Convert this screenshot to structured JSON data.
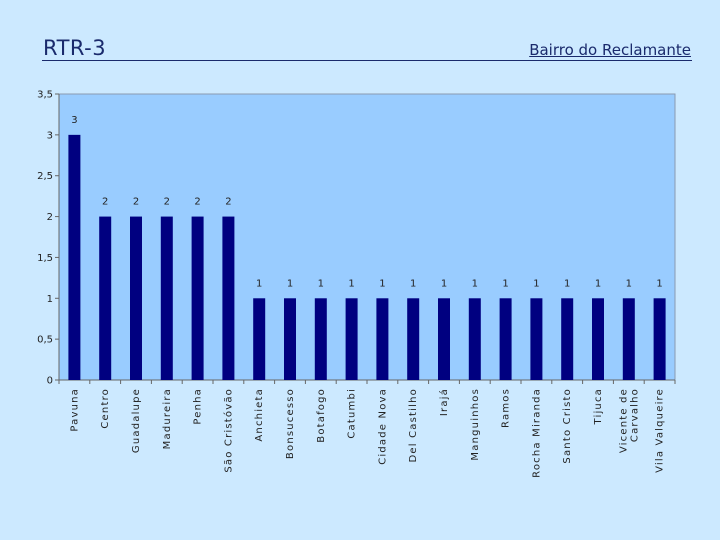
{
  "header": {
    "title": "RTR-3",
    "subtitle": "Bairro do Reclamante"
  },
  "colors": {
    "plot_area": "#99ccff",
    "bar": "#000080",
    "background": "#cce9ff"
  },
  "chart_data": {
    "type": "bar",
    "title": "Bairro do Reclamante",
    "xlabel": "",
    "ylabel": "",
    "ylim": [
      0,
      3.5
    ],
    "yticks": [
      "0",
      "0,5",
      "1",
      "1,5",
      "2",
      "2,5",
      "3",
      "3,5"
    ],
    "ytick_values": [
      0,
      0.5,
      1,
      1.5,
      2,
      2.5,
      3,
      3.5
    ],
    "grid": false,
    "legend": "none",
    "categories": [
      [
        "Pavuna"
      ],
      [
        "Centro"
      ],
      [
        "Guadalupe"
      ],
      [
        "Madureira"
      ],
      [
        "Penha"
      ],
      [
        "São Cristóvão"
      ],
      [
        "Anchieta"
      ],
      [
        "Bonsucesso"
      ],
      [
        "Botafogo"
      ],
      [
        "Catumbi"
      ],
      [
        "Cidade Nova"
      ],
      [
        "Del Castilho"
      ],
      [
        "Irajá"
      ],
      [
        "Manguinhos"
      ],
      [
        "Ramos"
      ],
      [
        "Rocha Miranda"
      ],
      [
        "Santo Cristo"
      ],
      [
        "Tijuca"
      ],
      [
        "Vicente de",
        "Carvalho"
      ],
      [
        "Vila Valqueire"
      ]
    ],
    "values": [
      3,
      2,
      2,
      2,
      2,
      2,
      1,
      1,
      1,
      1,
      1,
      1,
      1,
      1,
      1,
      1,
      1,
      1,
      1,
      1
    ],
    "data_labels": [
      "3",
      "2",
      "2",
      "2",
      "2",
      "2",
      "1",
      "1",
      "1",
      "1",
      "1",
      "1",
      "1",
      "1",
      "1",
      "1",
      "1",
      "1",
      "1",
      "1"
    ]
  }
}
